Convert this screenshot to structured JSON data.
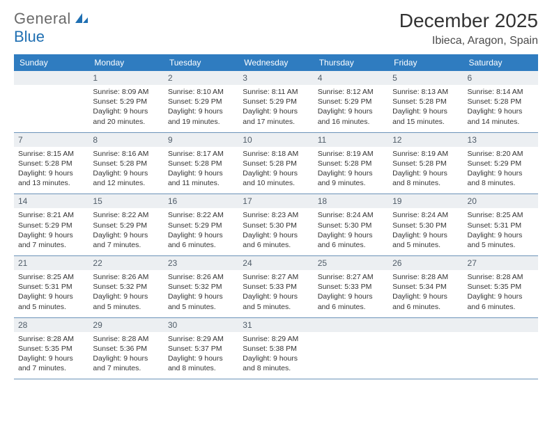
{
  "brand": {
    "part1": "General",
    "part2": "Blue"
  },
  "title": "December 2025",
  "location": "Ibieca, Aragon, Spain",
  "colors": {
    "header_bg": "#2f7cc0",
    "header_fg": "#ffffff",
    "daynum_bg": "#eceff2",
    "daynum_fg": "#4f5c68",
    "rule": "#6a92b8",
    "brand_gray": "#6a6a6a",
    "brand_blue": "#1f6fb2"
  },
  "weekdays": [
    "Sunday",
    "Monday",
    "Tuesday",
    "Wednesday",
    "Thursday",
    "Friday",
    "Saturday"
  ],
  "weeks": [
    [
      {
        "n": "",
        "sr": "",
        "ss": "",
        "dl": ""
      },
      {
        "n": "1",
        "sr": "Sunrise: 8:09 AM",
        "ss": "Sunset: 5:29 PM",
        "dl": "Daylight: 9 hours and 20 minutes."
      },
      {
        "n": "2",
        "sr": "Sunrise: 8:10 AM",
        "ss": "Sunset: 5:29 PM",
        "dl": "Daylight: 9 hours and 19 minutes."
      },
      {
        "n": "3",
        "sr": "Sunrise: 8:11 AM",
        "ss": "Sunset: 5:29 PM",
        "dl": "Daylight: 9 hours and 17 minutes."
      },
      {
        "n": "4",
        "sr": "Sunrise: 8:12 AM",
        "ss": "Sunset: 5:29 PM",
        "dl": "Daylight: 9 hours and 16 minutes."
      },
      {
        "n": "5",
        "sr": "Sunrise: 8:13 AM",
        "ss": "Sunset: 5:28 PM",
        "dl": "Daylight: 9 hours and 15 minutes."
      },
      {
        "n": "6",
        "sr": "Sunrise: 8:14 AM",
        "ss": "Sunset: 5:28 PM",
        "dl": "Daylight: 9 hours and 14 minutes."
      }
    ],
    [
      {
        "n": "7",
        "sr": "Sunrise: 8:15 AM",
        "ss": "Sunset: 5:28 PM",
        "dl": "Daylight: 9 hours and 13 minutes."
      },
      {
        "n": "8",
        "sr": "Sunrise: 8:16 AM",
        "ss": "Sunset: 5:28 PM",
        "dl": "Daylight: 9 hours and 12 minutes."
      },
      {
        "n": "9",
        "sr": "Sunrise: 8:17 AM",
        "ss": "Sunset: 5:28 PM",
        "dl": "Daylight: 9 hours and 11 minutes."
      },
      {
        "n": "10",
        "sr": "Sunrise: 8:18 AM",
        "ss": "Sunset: 5:28 PM",
        "dl": "Daylight: 9 hours and 10 minutes."
      },
      {
        "n": "11",
        "sr": "Sunrise: 8:19 AM",
        "ss": "Sunset: 5:28 PM",
        "dl": "Daylight: 9 hours and 9 minutes."
      },
      {
        "n": "12",
        "sr": "Sunrise: 8:19 AM",
        "ss": "Sunset: 5:28 PM",
        "dl": "Daylight: 9 hours and 8 minutes."
      },
      {
        "n": "13",
        "sr": "Sunrise: 8:20 AM",
        "ss": "Sunset: 5:29 PM",
        "dl": "Daylight: 9 hours and 8 minutes."
      }
    ],
    [
      {
        "n": "14",
        "sr": "Sunrise: 8:21 AM",
        "ss": "Sunset: 5:29 PM",
        "dl": "Daylight: 9 hours and 7 minutes."
      },
      {
        "n": "15",
        "sr": "Sunrise: 8:22 AM",
        "ss": "Sunset: 5:29 PM",
        "dl": "Daylight: 9 hours and 7 minutes."
      },
      {
        "n": "16",
        "sr": "Sunrise: 8:22 AM",
        "ss": "Sunset: 5:29 PM",
        "dl": "Daylight: 9 hours and 6 minutes."
      },
      {
        "n": "17",
        "sr": "Sunrise: 8:23 AM",
        "ss": "Sunset: 5:30 PM",
        "dl": "Daylight: 9 hours and 6 minutes."
      },
      {
        "n": "18",
        "sr": "Sunrise: 8:24 AM",
        "ss": "Sunset: 5:30 PM",
        "dl": "Daylight: 9 hours and 6 minutes."
      },
      {
        "n": "19",
        "sr": "Sunrise: 8:24 AM",
        "ss": "Sunset: 5:30 PM",
        "dl": "Daylight: 9 hours and 5 minutes."
      },
      {
        "n": "20",
        "sr": "Sunrise: 8:25 AM",
        "ss": "Sunset: 5:31 PM",
        "dl": "Daylight: 9 hours and 5 minutes."
      }
    ],
    [
      {
        "n": "21",
        "sr": "Sunrise: 8:25 AM",
        "ss": "Sunset: 5:31 PM",
        "dl": "Daylight: 9 hours and 5 minutes."
      },
      {
        "n": "22",
        "sr": "Sunrise: 8:26 AM",
        "ss": "Sunset: 5:32 PM",
        "dl": "Daylight: 9 hours and 5 minutes."
      },
      {
        "n": "23",
        "sr": "Sunrise: 8:26 AM",
        "ss": "Sunset: 5:32 PM",
        "dl": "Daylight: 9 hours and 5 minutes."
      },
      {
        "n": "24",
        "sr": "Sunrise: 8:27 AM",
        "ss": "Sunset: 5:33 PM",
        "dl": "Daylight: 9 hours and 5 minutes."
      },
      {
        "n": "25",
        "sr": "Sunrise: 8:27 AM",
        "ss": "Sunset: 5:33 PM",
        "dl": "Daylight: 9 hours and 6 minutes."
      },
      {
        "n": "26",
        "sr": "Sunrise: 8:28 AM",
        "ss": "Sunset: 5:34 PM",
        "dl": "Daylight: 9 hours and 6 minutes."
      },
      {
        "n": "27",
        "sr": "Sunrise: 8:28 AM",
        "ss": "Sunset: 5:35 PM",
        "dl": "Daylight: 9 hours and 6 minutes."
      }
    ],
    [
      {
        "n": "28",
        "sr": "Sunrise: 8:28 AM",
        "ss": "Sunset: 5:35 PM",
        "dl": "Daylight: 9 hours and 7 minutes."
      },
      {
        "n": "29",
        "sr": "Sunrise: 8:28 AM",
        "ss": "Sunset: 5:36 PM",
        "dl": "Daylight: 9 hours and 7 minutes."
      },
      {
        "n": "30",
        "sr": "Sunrise: 8:29 AM",
        "ss": "Sunset: 5:37 PM",
        "dl": "Daylight: 9 hours and 8 minutes."
      },
      {
        "n": "31",
        "sr": "Sunrise: 8:29 AM",
        "ss": "Sunset: 5:38 PM",
        "dl": "Daylight: 9 hours and 8 minutes."
      },
      {
        "n": "",
        "sr": "",
        "ss": "",
        "dl": ""
      },
      {
        "n": "",
        "sr": "",
        "ss": "",
        "dl": ""
      },
      {
        "n": "",
        "sr": "",
        "ss": "",
        "dl": ""
      }
    ]
  ]
}
